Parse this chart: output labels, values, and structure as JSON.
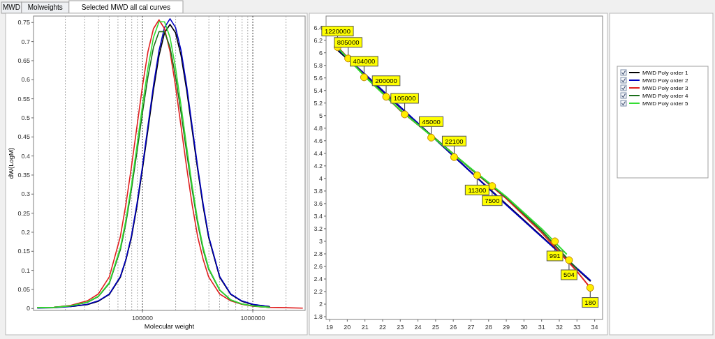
{
  "chart_data": [
    {
      "type": "other",
      "annotations": [
        "MWD",
        "Molweights",
        "Selected MWD all cal curves"
      ]
    },
    {
      "type": "line",
      "xlabel": "Molecular weight",
      "ylabel": "dW(LogM)",
      "log": "x",
      "grid": "x",
      "xlim": [
        10300,
        2980000
      ],
      "ylim": [
        -0.005,
        0.767
      ],
      "xticks": [
        {
          "value": 20000,
          "label": null
        },
        {
          "value": 30000,
          "label": null
        },
        {
          "value": 40000,
          "label": null
        },
        {
          "value": 50000,
          "label": null
        },
        {
          "value": 60000,
          "label": null
        },
        {
          "value": 70000,
          "label": null
        },
        {
          "value": 80000,
          "label": null
        },
        {
          "value": 90000,
          "label": null
        },
        100000,
        {
          "value": 200000,
          "label": null
        },
        {
          "value": 300000,
          "label": null
        },
        {
          "value": 400000,
          "label": null
        },
        {
          "value": 500000,
          "label": null
        },
        {
          "value": 600000,
          "label": null
        },
        {
          "value": 700000,
          "label": null
        },
        {
          "value": 800000,
          "label": null
        },
        {
          "value": 900000,
          "label": null
        },
        1000000,
        {
          "value": 2000000,
          "label": null
        }
      ],
      "yticks": [
        0,
        0.05,
        0.1,
        0.15,
        0.2,
        0.25,
        0.3,
        0.35,
        0.4,
        0.45,
        0.5,
        0.55,
        0.6,
        0.65,
        0.7,
        0.75
      ],
      "x": [
        11220,
        15850,
        22390,
        31620,
        39810,
        50120,
        63100,
        70790,
        79430,
        89130,
        100000,
        112200,
        125900,
        141300,
        158500,
        177800,
        199500,
        223900,
        251200,
        281800,
        316200,
        354800,
        398100,
        501200,
        631000,
        794300,
        1000000,
        1413000,
        1995000,
        2818000
      ],
      "series": [
        {
          "color": "#000000",
          "values": [
            null,
            null,
            0.005,
            0.01,
            0.019,
            0.037,
            0.082,
            0.127,
            0.186,
            0.268,
            0.365,
            0.469,
            0.574,
            0.663,
            0.723,
            0.745,
            0.723,
            0.663,
            0.574,
            0.469,
            0.365,
            0.268,
            0.186,
            0.082,
            0.037,
            0.019,
            0.01,
            0.005,
            null,
            null
          ]
        },
        {
          "color": "#0000c0",
          "values": [
            0.001,
            0.002,
            0.005,
            0.011,
            0.02,
            0.038,
            0.084,
            0.129,
            0.19,
            0.274,
            0.372,
            0.479,
            0.585,
            0.676,
            0.737,
            0.76,
            0.737,
            0.676,
            0.585,
            0.479,
            0.372,
            0.274,
            0.19,
            0.084,
            0.038,
            0.02,
            0.011,
            0.005,
            null,
            null
          ]
        },
        {
          "color": "#e02020",
          "values": [
            0.002,
            0.003,
            0.008,
            0.02,
            0.038,
            0.083,
            0.189,
            0.273,
            0.371,
            0.477,
            0.583,
            0.674,
            0.734,
            0.757,
            0.734,
            0.674,
            0.583,
            0.477,
            0.371,
            0.273,
            0.189,
            0.129,
            0.083,
            0.038,
            0.02,
            0.011,
            0.006,
            0.003,
            0.002,
            0.001
          ]
        },
        {
          "color": "#1a6e1a",
          "values": [
            0.002,
            0.003,
            0.007,
            0.016,
            0.031,
            0.066,
            0.154,
            0.224,
            0.312,
            0.41,
            0.513,
            0.608,
            0.685,
            0.726,
            0.726,
            0.685,
            0.608,
            0.513,
            0.41,
            0.312,
            0.224,
            0.154,
            0.103,
            0.048,
            0.022,
            0.012,
            0.007,
            0.003,
            null,
            null
          ]
        },
        {
          "color": "#33dd33",
          "values": [
            0.002,
            0.003,
            0.007,
            0.017,
            0.032,
            0.068,
            0.16,
            0.232,
            0.323,
            0.426,
            0.532,
            0.631,
            0.711,
            0.752,
            0.752,
            0.711,
            0.631,
            0.532,
            0.426,
            0.323,
            0.232,
            0.16,
            0.106,
            0.049,
            0.023,
            0.012,
            0.007,
            0.003,
            null,
            null
          ]
        }
      ]
    },
    {
      "type": "line",
      "legend": "right",
      "xlim": [
        18.8,
        34.45
      ],
      "ylim": [
        1.756,
        6.585
      ],
      "xticks": [
        19,
        20,
        21,
        22,
        23,
        24,
        25,
        26,
        27,
        28,
        29,
        30,
        31,
        32,
        33,
        34
      ],
      "yticks": [
        1.8,
        2,
        2.2,
        2.4,
        2.6,
        2.8,
        3,
        3.2,
        3.4,
        3.6,
        3.8,
        4,
        4.2,
        4.4,
        4.6,
        4.8,
        5,
        5.2,
        5.4,
        5.6,
        5.8,
        6,
        6.2,
        6.4
      ],
      "series": [
        {
          "name": "MWD Poly order 1",
          "color": "#000000",
          "x": [
            19.5,
            21,
            23,
            25,
            27,
            29,
            31,
            33,
            33.75
          ],
          "values": [
            6.03,
            5.65,
            5.13,
            4.62,
            4.1,
            3.59,
            3.08,
            2.56,
            2.37
          ]
        },
        {
          "name": "MWD Poly order 2",
          "color": "#0000c0",
          "x": [
            19.5,
            21,
            23,
            25,
            27,
            29,
            31,
            33,
            33.75
          ],
          "values": [
            6.05,
            5.66,
            5.14,
            4.62,
            4.1,
            3.58,
            3.07,
            2.57,
            2.38
          ]
        },
        {
          "name": "MWD Poly order 3",
          "color": "#e02020",
          "x": [
            19.5,
            21,
            23,
            25,
            27,
            29,
            31,
            33,
            33.7
          ],
          "values": [
            6.08,
            5.63,
            5.08,
            4.63,
            4.15,
            3.68,
            3.14,
            2.52,
            2.28
          ]
        },
        {
          "name": "MWD Poly order 4",
          "color": "#1a6e1a",
          "x": [
            19.5,
            21,
            23,
            25,
            27,
            29,
            31,
            33
          ],
          "values": [
            6.07,
            5.63,
            5.09,
            4.63,
            4.15,
            3.7,
            3.17,
            2.56
          ]
        },
        {
          "name": "MWD Poly order 5",
          "color": "#33dd33",
          "x": [
            19.5,
            21,
            23,
            25,
            27,
            29,
            31,
            32.4
          ],
          "values": [
            6.07,
            5.62,
            5.09,
            4.62,
            4.16,
            3.71,
            3.2,
            2.8
          ]
        },
        {
          "type": "scatter",
          "marker": "circle",
          "color": "#ffee00",
          "x": [
            19.45,
            20.05,
            20.95,
            22.2,
            23.25,
            24.75,
            26.05,
            27.35,
            28.2,
            31.75,
            32.55,
            33.75
          ],
          "values": [
            6.09,
            5.91,
            5.61,
            5.3,
            5.02,
            4.65,
            4.34,
            4.05,
            3.88,
            3,
            2.7,
            2.26
          ]
        }
      ],
      "annotations": [
        {
          "text": "1220000",
          "x": 19.45,
          "y": 6.09
        },
        {
          "text": "805000",
          "x": 20.05,
          "y": 5.91
        },
        {
          "text": "404000",
          "x": 20.95,
          "y": 5.61
        },
        {
          "text": "200000",
          "x": 22.2,
          "y": 5.3
        },
        {
          "text": "105000",
          "x": 23.25,
          "y": 5.02
        },
        {
          "text": "45000",
          "x": 24.75,
          "y": 4.65
        },
        {
          "text": "22100",
          "x": 26.05,
          "y": 4.34
        },
        {
          "text": "11300",
          "x": 27.35,
          "y": 4.05
        },
        {
          "text": "7500",
          "x": 28.2,
          "y": 3.88
        },
        {
          "text": "991",
          "x": 31.75,
          "y": 3
        },
        {
          "text": "504",
          "x": 32.55,
          "y": 2.7
        },
        {
          "text": "180",
          "x": 33.75,
          "y": 2.26
        }
      ]
    }
  ]
}
